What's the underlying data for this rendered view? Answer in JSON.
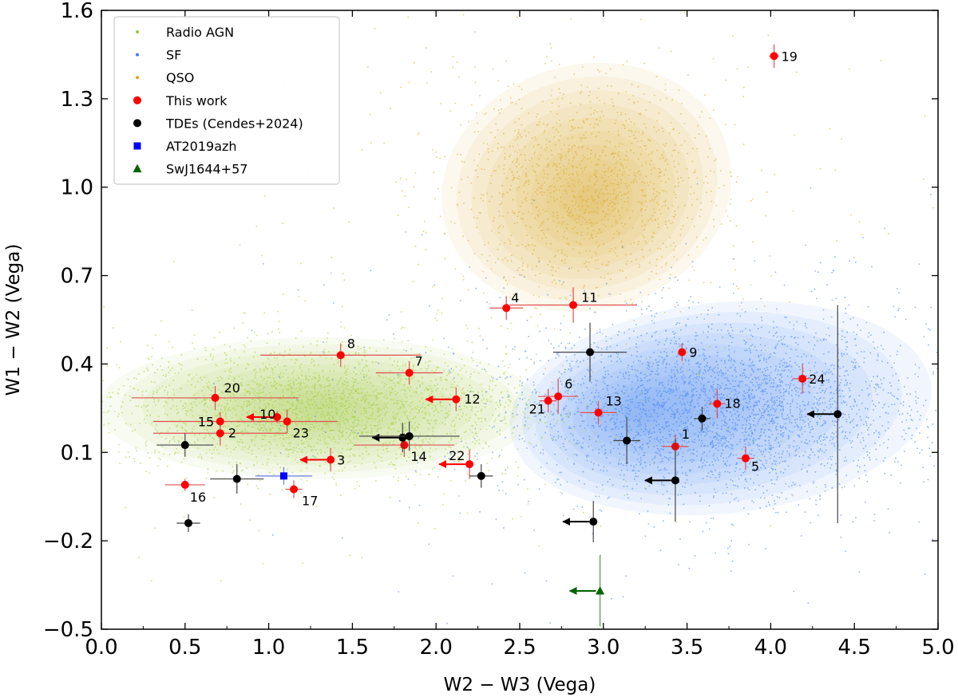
{
  "chart_data": {
    "type": "scatter",
    "xlabel": "W2 − W3 (Vega)",
    "ylabel": "W1 − W2 (Vega)",
    "xlim": [
      0.0,
      5.0
    ],
    "ylim": [
      -0.5,
      1.6
    ],
    "xticks": [
      0.0,
      0.5,
      1.0,
      1.5,
      2.0,
      2.5,
      3.0,
      3.5,
      4.0,
      4.5,
      5.0
    ],
    "xtick_labels": [
      "0.0",
      "0.5",
      "1.0",
      "1.5",
      "2.0",
      "2.5",
      "3.0",
      "3.5",
      "4.0",
      "4.5",
      "5.0"
    ],
    "yticks": [
      -0.5,
      -0.2,
      0.1,
      0.4,
      0.7,
      1.0,
      1.3,
      1.6
    ],
    "ytick_labels": [
      "−0.5",
      "−0.2",
      "0.1",
      "0.4",
      "0.7",
      "1.0",
      "1.3",
      "1.6"
    ],
    "legend_position": "top-left",
    "legend": [
      {
        "label": "Radio AGN",
        "marker": "dot",
        "color": "#9acd32"
      },
      {
        "label": "SF",
        "marker": "dot",
        "color": "#3b7bf0"
      },
      {
        "label": "QSO",
        "marker": "dot",
        "color": "#daa520"
      },
      {
        "label": "This work",
        "marker": "circle",
        "color": "#ff0000"
      },
      {
        "label": "TDEs (Cendes+2024)",
        "marker": "circle",
        "color": "#000000"
      },
      {
        "label": "AT2019azh",
        "marker": "square",
        "color": "#0000ff"
      },
      {
        "label": "SwJ1644+57",
        "marker": "triangle",
        "color": "#006400"
      }
    ],
    "populations": [
      {
        "name": "Radio AGN",
        "color": "#9acd32",
        "cx": 1.3,
        "cy": 0.25,
        "sx": 0.6,
        "sy": 0.1
      },
      {
        "name": "SF",
        "color": "#3b7bf0",
        "cx": 3.7,
        "cy": 0.25,
        "sx": 0.55,
        "sy": 0.14
      },
      {
        "name": "QSO",
        "color": "#daa520",
        "cx": 2.9,
        "cy": 1.0,
        "sx": 0.38,
        "sy": 0.17
      }
    ],
    "series": [
      {
        "name": "This work",
        "color": "#ff0000",
        "marker": "circle",
        "points": [
          {
            "id": "1",
            "x": 3.43,
            "y": 0.12,
            "xerr": 0.08,
            "yerr": 0.04
          },
          {
            "id": "2",
            "x": 0.71,
            "y": 0.165,
            "xerr": 0.4,
            "yerr": 0.04
          },
          {
            "id": "3",
            "x": 1.37,
            "y": 0.075,
            "xerr": 0.0,
            "yerr": 0.04,
            "upper_limit_x": true
          },
          {
            "id": "4",
            "x": 2.42,
            "y": 0.59,
            "xerr": 0.1,
            "yerr": 0.04
          },
          {
            "id": "5",
            "x": 3.85,
            "y": 0.08,
            "xerr": 0.05,
            "yerr": 0.04
          },
          {
            "id": "6",
            "x": 2.73,
            "y": 0.29,
            "xerr": 0.12,
            "yerr": 0.06
          },
          {
            "id": "7",
            "x": 1.84,
            "y": 0.37,
            "xerr": 0.2,
            "yerr": 0.04
          },
          {
            "id": "8",
            "x": 1.43,
            "y": 0.43,
            "xerr": 0.48,
            "yerr": 0.04
          },
          {
            "id": "9",
            "x": 3.47,
            "y": 0.44,
            "xerr": 0.0,
            "yerr": 0.03
          },
          {
            "id": "10",
            "x": 1.05,
            "y": 0.22,
            "xerr": 0.0,
            "yerr": 0.02,
            "upper_limit_x": true
          },
          {
            "id": "11",
            "x": 2.82,
            "y": 0.6,
            "xerr": 0.38,
            "yerr": 0.06
          },
          {
            "id": "12",
            "x": 2.12,
            "y": 0.28,
            "xerr": 0.0,
            "yerr": 0.04,
            "upper_limit_x": true
          },
          {
            "id": "13",
            "x": 2.97,
            "y": 0.235,
            "xerr": 0.11,
            "yerr": 0.04
          },
          {
            "id": "14",
            "x": 1.81,
            "y": 0.125,
            "xerr": 0.3,
            "yerr": 0.04
          },
          {
            "id": "15",
            "x": 0.71,
            "y": 0.205,
            "xerr": 0.4,
            "yerr": 0.03
          },
          {
            "id": "16",
            "x": 0.5,
            "y": -0.01,
            "xerr": 0.12,
            "yerr": 0.02
          },
          {
            "id": "17",
            "x": 1.15,
            "y": -0.025,
            "xerr": 0.05,
            "yerr": 0.03
          },
          {
            "id": "18",
            "x": 3.68,
            "y": 0.265,
            "xerr": 0.05,
            "yerr": 0.05
          },
          {
            "id": "19",
            "x": 4.02,
            "y": 1.445,
            "xerr": 0.03,
            "yerr": 0.04
          },
          {
            "id": "20",
            "x": 0.68,
            "y": 0.285,
            "xerr": 0.5,
            "yerr": 0.04
          },
          {
            "id": "21",
            "x": 2.67,
            "y": 0.275,
            "xerr": 0.05,
            "yerr": 0.04
          },
          {
            "id": "22",
            "x": 2.2,
            "y": 0.06,
            "xerr": 0.0,
            "yerr": 0.05,
            "upper_limit_x": true
          },
          {
            "id": "23",
            "x": 1.11,
            "y": 0.205,
            "xerr": 0.3,
            "yerr": 0.04
          },
          {
            "id": "24",
            "x": 4.19,
            "y": 0.35,
            "xerr": 0.06,
            "yerr": 0.05
          }
        ]
      },
      {
        "name": "TDEs (Cendes+2024)",
        "color": "#000000",
        "marker": "circle",
        "points": [
          {
            "x": 2.92,
            "y": 0.44,
            "xerr": 0.22,
            "yerr": 0.1
          },
          {
            "x": 1.8,
            "y": 0.15,
            "xerr": 0.0,
            "yerr": 0.05,
            "upper_limit_x": true
          },
          {
            "x": 1.84,
            "y": 0.155,
            "xerr": 0.3,
            "yerr": 0.05
          },
          {
            "x": 0.5,
            "y": 0.125,
            "xerr": 0.17,
            "yerr": 0.04
          },
          {
            "x": 0.81,
            "y": 0.01,
            "xerr": 0.16,
            "yerr": 0.05
          },
          {
            "x": 0.52,
            "y": -0.14,
            "xerr": 0.07,
            "yerr": 0.03
          },
          {
            "x": 2.27,
            "y": 0.02,
            "xerr": 0.07,
            "yerr": 0.04
          },
          {
            "x": 3.14,
            "y": 0.14,
            "xerr": 0.08,
            "yerr": 0.08
          },
          {
            "x": 3.59,
            "y": 0.215,
            "xerr": 0.05,
            "yerr": 0.04
          },
          {
            "x": 3.43,
            "y": 0.005,
            "xerr": 0.0,
            "yerr": 0.14,
            "upper_limit_x": true
          },
          {
            "x": 2.94,
            "y": -0.135,
            "xerr": 0.0,
            "yerr": 0.07,
            "upper_limit_x": true
          },
          {
            "x": 4.4,
            "y": 0.23,
            "xerr": 0.0,
            "yerr": 0.37,
            "upper_limit_x": true
          }
        ]
      },
      {
        "name": "AT2019azh",
        "color": "#0000ff",
        "marker": "square",
        "points": [
          {
            "x": 1.09,
            "y": 0.02,
            "xerr": 0.17,
            "yerr": 0.03
          }
        ]
      },
      {
        "name": "SwJ1644+57",
        "color": "#006400",
        "marker": "triangle",
        "points": [
          {
            "x": 2.98,
            "y": -0.37,
            "xerr": 0.0,
            "yerr": 0.12,
            "upper_limit_x": true
          }
        ]
      }
    ]
  }
}
